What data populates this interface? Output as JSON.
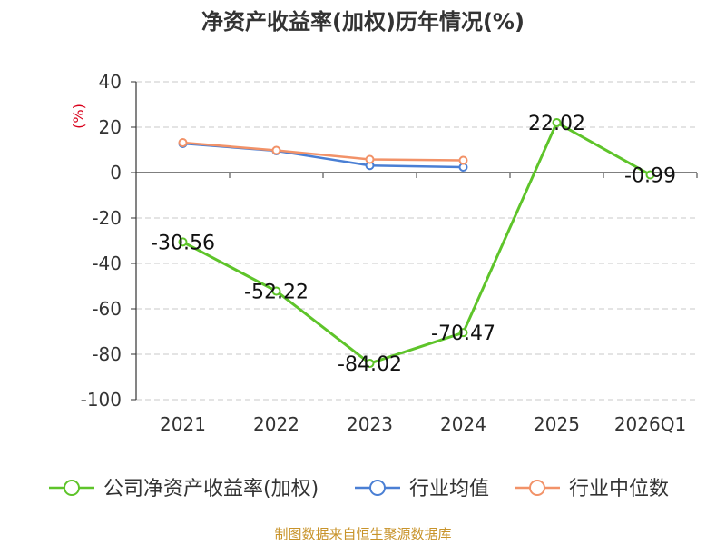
{
  "chart_data": {
    "type": "line",
    "title": "净资产收益率(加权)历年情况(%)",
    "unit_label": "(%)",
    "categories": [
      "2021",
      "2022",
      "2023",
      "2024",
      "2025",
      "2026Q1"
    ],
    "ylim": [
      -100,
      40
    ],
    "yticks": [
      40,
      20,
      0,
      -20,
      -40,
      -60,
      -80,
      -100
    ],
    "grid": true,
    "legend_position": "bottom",
    "series": [
      {
        "name": "公司净资产收益率(加权)",
        "color": "#5ec42a",
        "values": [
          -30.56,
          -52.22,
          -84.02,
          -70.47,
          22.02,
          -0.99
        ],
        "labels": [
          "-30.56",
          "-52.22",
          "-84.02",
          "-70.47",
          "22.02",
          "-0.99"
        ]
      },
      {
        "name": "行业均值",
        "color": "#4a7fd4",
        "values": [
          12.8,
          9.6,
          3.1,
          2.4,
          null,
          null
        ]
      },
      {
        "name": "行业中位数",
        "color": "#f29268",
        "values": [
          13.2,
          9.8,
          5.8,
          5.4,
          null,
          null
        ]
      }
    ],
    "source": "制图数据来自恒生聚源数据库"
  }
}
